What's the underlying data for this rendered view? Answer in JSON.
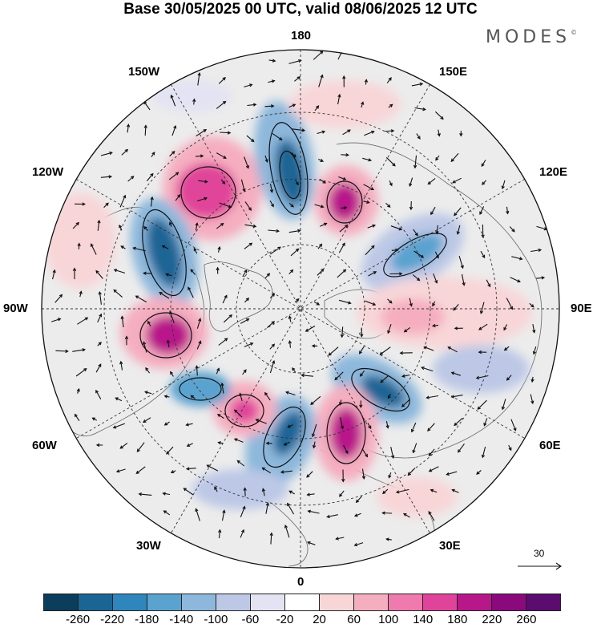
{
  "title": "Base 30/05/2025 00 UTC, valid 08/06/2025 12 UTC",
  "brand": "MODES",
  "brand_mark": "©",
  "longitude_labels": {
    "top": "180",
    "top_left": "150W",
    "top_right": "150E",
    "upper_left": "120W",
    "upper_right": "120E",
    "left": "90W",
    "right": "90E",
    "lower_left": "60W",
    "lower_right": "60E",
    "bottom_left": "30W",
    "bottom_right": "30E",
    "bottom": "0"
  },
  "reference_vector": "30",
  "colorbar": {
    "ticks": [
      "-260",
      "-220",
      "-180",
      "-140",
      "-100",
      "-60",
      "-20",
      "20",
      "60",
      "100",
      "140",
      "180",
      "220",
      "260"
    ],
    "colors": [
      "#0b3d5c",
      "#1b6594",
      "#2e86bd",
      "#5aa2cf",
      "#8db8dc",
      "#bcc8e6",
      "#e3e3f3",
      "#ffffff",
      "#f8d6d8",
      "#f5aec0",
      "#ef7aae",
      "#e0449a",
      "#b8178a",
      "#8a0a7e",
      "#5c0b6f"
    ]
  },
  "map": {
    "background_color": "#ececec",
    "land_outline_color": "#555555",
    "anomaly_centers": [
      {
        "sign": "positive",
        "level": 220
      },
      {
        "sign": "negative",
        "level": -260
      },
      {
        "sign": "positive",
        "level": 220
      },
      {
        "sign": "negative",
        "level": -220
      },
      {
        "sign": "positive",
        "level": 260
      },
      {
        "sign": "negative",
        "level": -140
      },
      {
        "sign": "positive",
        "level": 180
      },
      {
        "sign": "negative",
        "level": -260
      },
      {
        "sign": "positive",
        "level": 220
      },
      {
        "sign": "negative",
        "level": -180
      },
      {
        "sign": "positive",
        "level": 140
      },
      {
        "sign": "negative",
        "level": -140
      },
      {
        "sign": "positive",
        "level": 100
      }
    ]
  }
}
